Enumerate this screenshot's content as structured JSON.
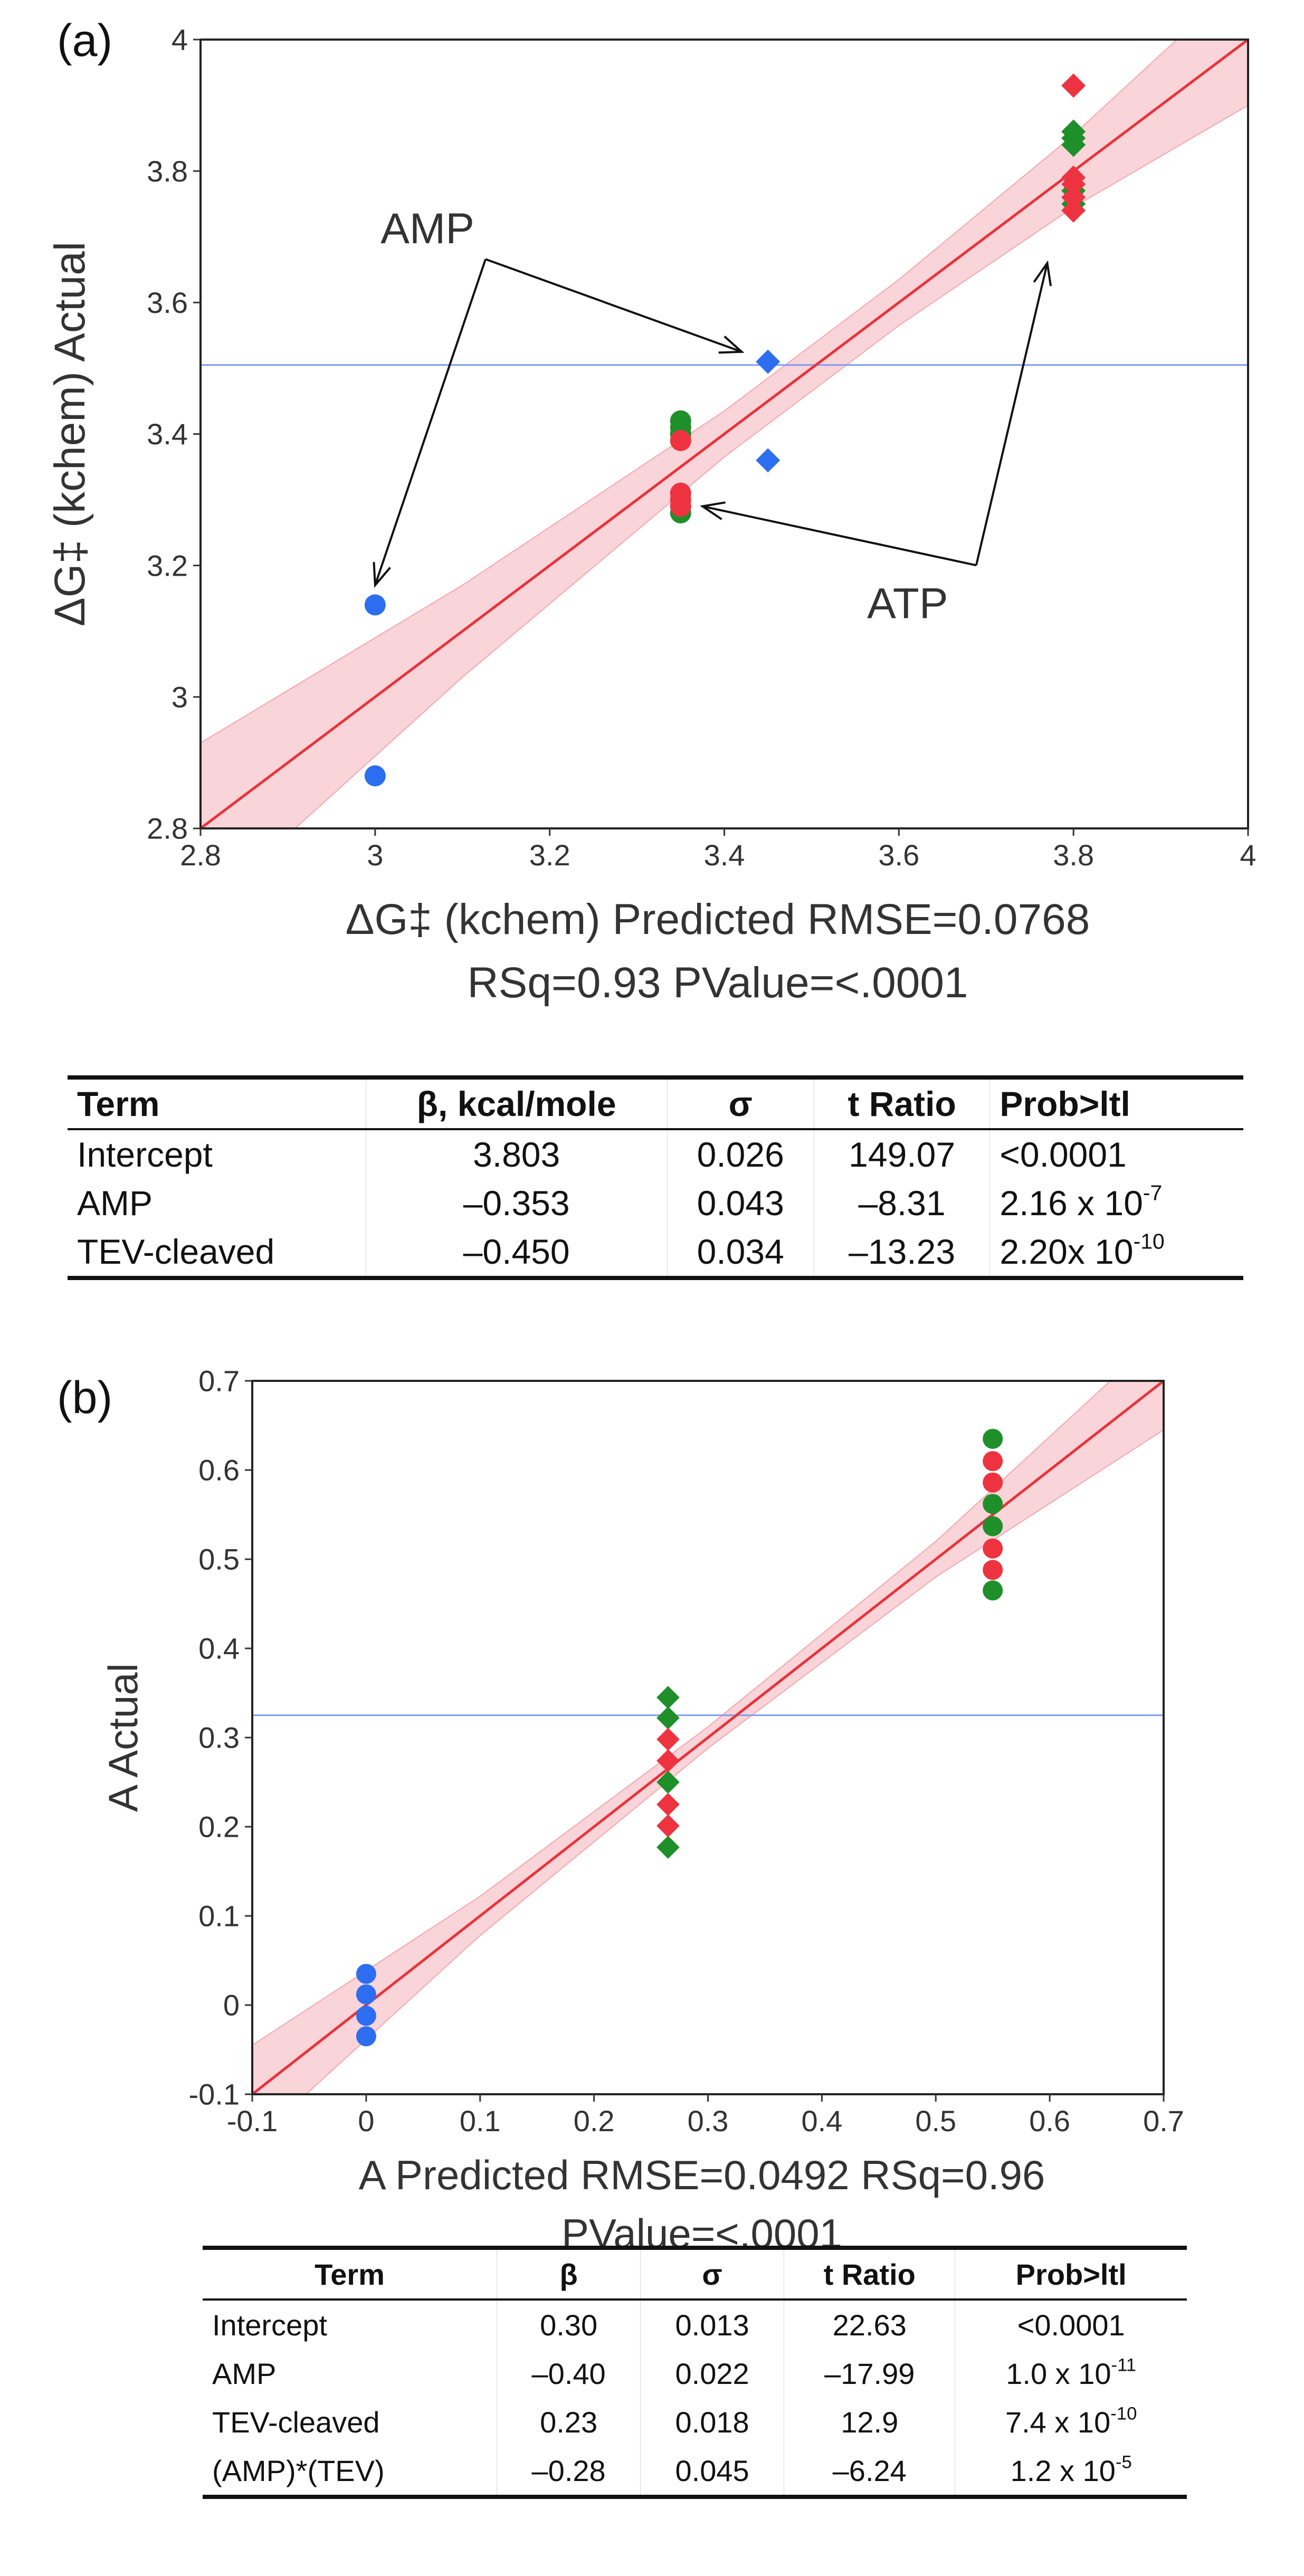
{
  "panel_a": {
    "label": "(a)",
    "table": {
      "headers": [
        "Term",
        "β, kcal/mole",
        "σ",
        "t Ratio",
        "Prob>ltl"
      ],
      "rows": [
        {
          "term": "Intercept",
          "beta": "3.803",
          "sigma": "0.026",
          "t": "149.07",
          "p": "<0.0001",
          "p_exp": ""
        },
        {
          "term": "AMP",
          "beta": "–0.353",
          "sigma": "0.043",
          "t": "–8.31",
          "p": "2.16 x 10",
          "p_exp": "-7"
        },
        {
          "term": "TEV-cleaved",
          "beta": "–0.450",
          "sigma": "0.034",
          "t": "–13.23",
          "p": "2.20x 10",
          "p_exp": "-10"
        }
      ]
    }
  },
  "panel_b": {
    "label": "(b)",
    "table": {
      "headers": [
        "Term",
        "β",
        "σ",
        "t Ratio",
        "Prob>ltl"
      ],
      "rows": [
        {
          "term": "Intercept",
          "beta": "0.30",
          "sigma": "0.013",
          "t": "22.63",
          "p": "<0.0001",
          "p_exp": ""
        },
        {
          "term": "AMP",
          "beta": "–0.40",
          "sigma": "0.022",
          "t": "–17.99",
          "p": "1.0 x 10",
          "p_exp": "-11"
        },
        {
          "term": "TEV-cleaved",
          "beta": "0.23",
          "sigma": "0.018",
          "t": "12.9",
          "p": "7.4 x 10",
          "p_exp": "-10"
        },
        {
          "term": "(AMP)*(TEV)",
          "beta": "–0.28",
          "sigma": "0.045",
          "t": "–6.24",
          "p": "1.2 x 10",
          "p_exp": "-5"
        }
      ]
    }
  },
  "colors": {
    "blue": "#2d6ef0",
    "red": "#ee3340",
    "green": "#1f8f2a",
    "fit": "#e8323a",
    "band": "#f7c6cc",
    "mean": "#7d9cf0"
  },
  "chart_data": [
    {
      "type": "scatter",
      "title": "",
      "xlabel": "ΔG‡ (kchem) Predicted RMSE=0.0768",
      "xlabel2": "RSq=0.93 PValue=<.0001",
      "ylabel": "ΔG‡ (kchem) Actual",
      "xlim": [
        2.8,
        4.0
      ],
      "ylim": [
        2.8,
        4.0
      ],
      "xticks": [
        "2.8",
        "3",
        "3.2",
        "3.4",
        "3.6",
        "3.8",
        "4"
      ],
      "yticks": [
        "2.8",
        "3",
        "3.2",
        "3.4",
        "3.6",
        "3.8",
        "4"
      ],
      "mean_line": 3.505,
      "fit": {
        "slope": 1.0,
        "intercept": 0.0,
        "band_x": [
          2.8,
          3.1,
          3.4,
          3.6,
          3.8,
          4.0
        ],
        "band_half": [
          0.13,
          0.07,
          0.035,
          0.035,
          0.055,
          0.1
        ]
      },
      "series": [
        {
          "name": "blue-circle",
          "color": "blue",
          "marker": "circle",
          "points": [
            [
              3.0,
              3.14
            ],
            [
              3.0,
              2.88
            ]
          ]
        },
        {
          "name": "blue-diamond",
          "color": "blue",
          "marker": "diamond",
          "points": [
            [
              3.45,
              3.51
            ],
            [
              3.45,
              3.36
            ]
          ]
        },
        {
          "name": "green-circle",
          "color": "green",
          "marker": "circle",
          "points": [
            [
              3.35,
              3.42
            ],
            [
              3.35,
              3.41
            ],
            [
              3.35,
              3.4
            ],
            [
              3.35,
              3.28
            ]
          ]
        },
        {
          "name": "red-circle",
          "color": "red",
          "marker": "circle",
          "points": [
            [
              3.35,
              3.39
            ],
            [
              3.35,
              3.31
            ],
            [
              3.35,
              3.3
            ],
            [
              3.35,
              3.29
            ]
          ]
        },
        {
          "name": "green-diamond",
          "color": "green",
          "marker": "diamond",
          "points": [
            [
              3.8,
              3.86
            ],
            [
              3.8,
              3.85
            ],
            [
              3.8,
              3.84
            ],
            [
              3.8,
              3.77
            ],
            [
              3.8,
              3.75
            ]
          ]
        },
        {
          "name": "red-diamond",
          "color": "red",
          "marker": "diamond",
          "points": [
            [
              3.8,
              3.93
            ],
            [
              3.8,
              3.79
            ],
            [
              3.8,
              3.78
            ],
            [
              3.8,
              3.76
            ],
            [
              3.8,
              3.74
            ]
          ]
        }
      ],
      "annotations": [
        {
          "text": "AMP",
          "anchor": [
            3.06,
            3.69
          ],
          "targets": [
            [
              3.0,
              3.17
            ],
            [
              3.42,
              3.525
            ]
          ]
        },
        {
          "text": "ATP",
          "anchor": [
            3.61,
            3.12
          ],
          "targets": [
            [
              3.375,
              3.29
            ],
            [
              3.77,
              3.66
            ]
          ]
        }
      ]
    },
    {
      "type": "scatter",
      "title": "",
      "xlabel": "A Predicted RMSE=0.0492 RSq=0.96",
      "xlabel2": "PValue=<.0001",
      "ylabel": "A Actual",
      "xlim": [
        -0.1,
        0.7
      ],
      "ylim": [
        -0.1,
        0.7
      ],
      "xticks": [
        "-0.1",
        "0",
        "0.1",
        "0.2",
        "0.3",
        "0.4",
        "0.5",
        "0.6",
        "0.7"
      ],
      "yticks": [
        "-0.1",
        "0",
        "0.1",
        "0.2",
        "0.3",
        "0.4",
        "0.5",
        "0.6",
        "0.7"
      ],
      "mean_line": 0.325,
      "fit": {
        "slope": 1.0,
        "intercept": 0.0,
        "band_x": [
          -0.1,
          0.1,
          0.3,
          0.5,
          0.7
        ],
        "band_half": [
          0.055,
          0.022,
          0.012,
          0.02,
          0.055
        ]
      },
      "series": [
        {
          "name": "blue-circle",
          "color": "blue",
          "marker": "circle",
          "points": [
            [
              0.0,
              0.035
            ],
            [
              0.0,
              0.012
            ],
            [
              0.0,
              -0.012
            ],
            [
              0.0,
              -0.035
            ]
          ]
        },
        {
          "name": "green-diamond",
          "color": "green",
          "marker": "diamond",
          "points": [
            [
              0.265,
              0.345
            ],
            [
              0.265,
              0.322
            ],
            [
              0.265,
              0.25
            ],
            [
              0.265,
              0.177
            ]
          ]
        },
        {
          "name": "red-diamond",
          "color": "red",
          "marker": "diamond",
          "points": [
            [
              0.265,
              0.298
            ],
            [
              0.265,
              0.274
            ],
            [
              0.265,
              0.225
            ],
            [
              0.265,
              0.201
            ]
          ]
        },
        {
          "name": "green-circle",
          "color": "green",
          "marker": "circle",
          "points": [
            [
              0.55,
              0.635
            ],
            [
              0.55,
              0.562
            ],
            [
              0.55,
              0.537
            ],
            [
              0.55,
              0.465
            ]
          ]
        },
        {
          "name": "red-circle",
          "color": "red",
          "marker": "circle",
          "points": [
            [
              0.55,
              0.61
            ],
            [
              0.55,
              0.586
            ],
            [
              0.55,
              0.512
            ],
            [
              0.55,
              0.488
            ]
          ]
        }
      ],
      "annotations": []
    }
  ]
}
